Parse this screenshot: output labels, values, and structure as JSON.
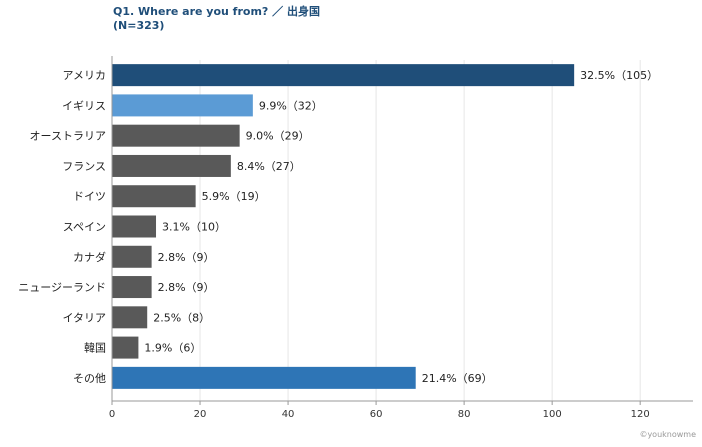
{
  "title": "Q1. Where are you from? ／ 出身国",
  "subtitle": "(N=323)",
  "credit": "©youknowme",
  "colors": {
    "dark_blue": "#1f4e79",
    "light_blue": "#5b9bd5",
    "mid_blue": "#2e75b6",
    "gray": "#595959",
    "grid": "#e6e6e6",
    "axis": "#999999"
  },
  "chart_data": {
    "type": "bar",
    "orientation": "horizontal",
    "categories": [
      "アメリカ",
      "イギリス",
      "オーストラリア",
      "フランス",
      "ドイツ",
      "スペイン",
      "カナダ",
      "ニュージーランド",
      "イタリア",
      "韓国",
      "その他"
    ],
    "values": [
      105,
      32,
      29,
      27,
      19,
      10,
      9,
      9,
      8,
      6,
      69
    ],
    "data_labels": [
      "32.5%（105）",
      "9.9%（32）",
      "9.0%（29）",
      "8.4%（27）",
      "5.9%（19）",
      "3.1%（10）",
      "2.8%（9）",
      "2.8%（9）",
      "2.5%（8）",
      "1.9%（6）",
      "21.4%（69）"
    ],
    "bar_colors": [
      "#1f4e79",
      "#5b9bd5",
      "#595959",
      "#595959",
      "#595959",
      "#595959",
      "#595959",
      "#595959",
      "#595959",
      "#595959",
      "#2e75b6"
    ],
    "xlim": [
      0,
      132
    ],
    "xticks": [
      0,
      20,
      40,
      60,
      80,
      100,
      120
    ],
    "grid": true
  }
}
